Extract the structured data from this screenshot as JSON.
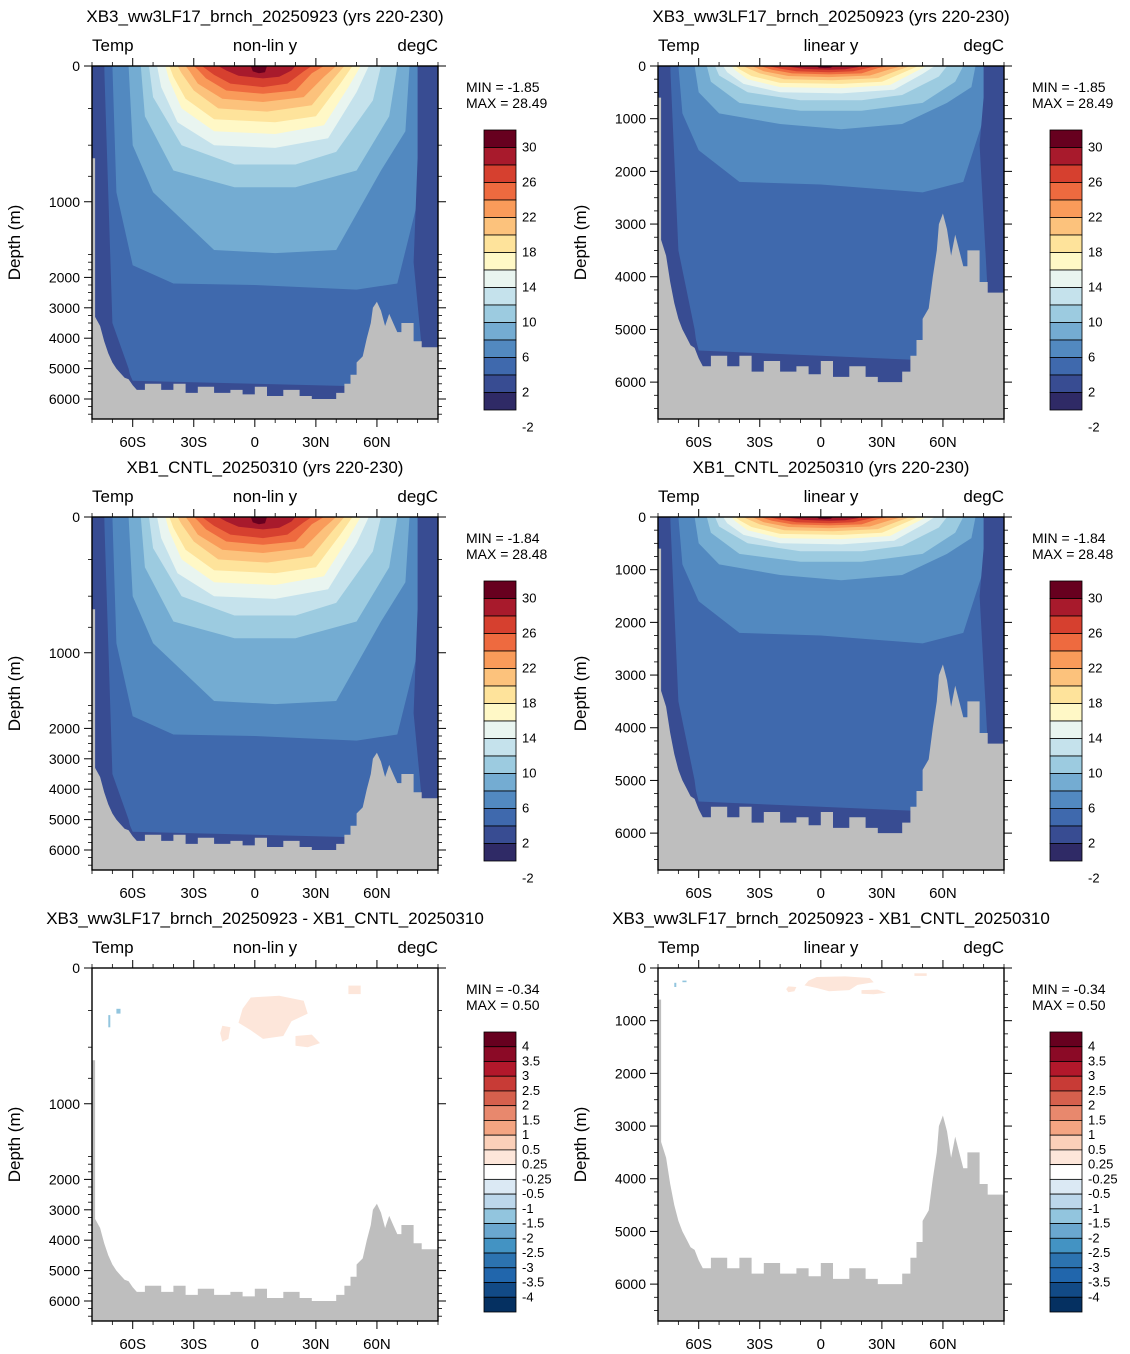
{
  "figure": {
    "panels": [
      {
        "title": "XB3_ww3LF17_brnch_20250923 (yrs 220-230)",
        "left_label": "Temp",
        "center_label": "non-lin y",
        "right_label": "degC",
        "min_text": "MIN = -1.85",
        "max_text": "MAX = 28.49",
        "ylabel": "Depth (m)",
        "yscale": "non-linear",
        "ytick_labels": [
          "0",
          "1000",
          "2000",
          "3000",
          "4000",
          "5000",
          "6000"
        ],
        "xtick_labels": [
          "60S",
          "30S",
          "0",
          "30N",
          "60N"
        ],
        "colorbar_labels": [
          "30",
          "26",
          "22",
          "18",
          "14",
          "10",
          "6",
          "2",
          "-2"
        ],
        "colorbar": "temp"
      },
      {
        "title": "XB3_ww3LF17_brnch_20250923 (yrs 220-230)",
        "left_label": "Temp",
        "center_label": "linear y",
        "right_label": "degC",
        "min_text": "MIN = -1.85",
        "max_text": "MAX = 28.49",
        "ylabel": "Depth (m)",
        "yscale": "linear",
        "ytick_labels": [
          "0",
          "1000",
          "2000",
          "3000",
          "4000",
          "5000",
          "6000"
        ],
        "xtick_labels": [
          "60S",
          "30S",
          "0",
          "30N",
          "60N"
        ],
        "colorbar_labels": [
          "30",
          "26",
          "22",
          "18",
          "14",
          "10",
          "6",
          "2",
          "-2"
        ],
        "colorbar": "temp"
      },
      {
        "title": "XB1_CNTL_20250310 (yrs 220-230)",
        "left_label": "Temp",
        "center_label": "non-lin y",
        "right_label": "degC",
        "min_text": "MIN = -1.84",
        "max_text": "MAX = 28.48",
        "ylabel": "Depth (m)",
        "yscale": "non-linear",
        "ytick_labels": [
          "0",
          "1000",
          "2000",
          "3000",
          "4000",
          "5000",
          "6000"
        ],
        "xtick_labels": [
          "60S",
          "30S",
          "0",
          "30N",
          "60N"
        ],
        "colorbar_labels": [
          "30",
          "26",
          "22",
          "18",
          "14",
          "10",
          "6",
          "2",
          "-2"
        ],
        "colorbar": "temp"
      },
      {
        "title": "XB1_CNTL_20250310 (yrs 220-230)",
        "left_label": "Temp",
        "center_label": "linear y",
        "right_label": "degC",
        "min_text": "MIN = -1.84",
        "max_text": "MAX = 28.48",
        "ylabel": "Depth (m)",
        "yscale": "linear",
        "ytick_labels": [
          "0",
          "1000",
          "2000",
          "3000",
          "4000",
          "5000",
          "6000"
        ],
        "xtick_labels": [
          "60S",
          "30S",
          "0",
          "30N",
          "60N"
        ],
        "colorbar_labels": [
          "30",
          "26",
          "22",
          "18",
          "14",
          "10",
          "6",
          "2",
          "-2"
        ],
        "colorbar": "temp"
      },
      {
        "title": "XB3_ww3LF17_brnch_20250923 - XB1_CNTL_20250310",
        "left_label": "Temp",
        "center_label": "non-lin y",
        "right_label": "degC",
        "min_text": "MIN = -0.34",
        "max_text": "MAX = 0.50",
        "ylabel": "Depth (m)",
        "yscale": "non-linear",
        "ytick_labels": [
          "0",
          "1000",
          "2000",
          "3000",
          "4000",
          "5000",
          "6000"
        ],
        "xtick_labels": [
          "60S",
          "30S",
          "0",
          "30N",
          "60N"
        ],
        "colorbar_labels": [
          "4",
          "3.5",
          "3",
          "2.5",
          "2",
          "1.5",
          "1",
          "0.5",
          "0.25",
          "-0.25",
          "-0.5",
          "-1",
          "-1.5",
          "-2",
          "-2.5",
          "-3",
          "-3.5",
          "-4"
        ],
        "colorbar": "diff"
      },
      {
        "title": "XB3_ww3LF17_brnch_20250923 - XB1_CNTL_20250310",
        "left_label": "Temp",
        "center_label": "linear y",
        "right_label": "degC",
        "min_text": "MIN = -0.34",
        "max_text": "MAX = 0.50",
        "ylabel": "Depth (m)",
        "yscale": "linear",
        "ytick_labels": [
          "0",
          "1000",
          "2000",
          "3000",
          "4000",
          "5000",
          "6000"
        ],
        "xtick_labels": [
          "60S",
          "30S",
          "0",
          "30N",
          "60N"
        ],
        "colorbar_labels": [
          "4",
          "3.5",
          "3",
          "2.5",
          "2",
          "1.5",
          "1",
          "0.5",
          "0.25",
          "-0.25",
          "-0.5",
          "-1",
          "-1.5",
          "-2",
          "-2.5",
          "-3",
          "-3.5",
          "-4"
        ],
        "colorbar": "diff"
      }
    ],
    "temp_colors": [
      "#67001f",
      "#a81a2c",
      "#d6402f",
      "#ee6a3f",
      "#f99b5a",
      "#fcc27c",
      "#fee39b",
      "#fff8c6",
      "#e9f5f0",
      "#c5e2ec",
      "#9ccbe0",
      "#74acd2",
      "#5289c0",
      "#3f69ad",
      "#384c92",
      "#2f2a66"
    ],
    "diff_colors": [
      "#67001f",
      "#8b0a26",
      "#b2182b",
      "#c83b36",
      "#d6604d",
      "#e8886d",
      "#f4a582",
      "#fbd0b9",
      "#fde6da",
      "#ffffff",
      "#dbe9f4",
      "#bcd7eb",
      "#92c5de",
      "#6aa7cf",
      "#4393c3",
      "#2c73b0",
      "#2166ac",
      "#124a86",
      "#053061"
    ],
    "land_color": "#bebebe",
    "chart_data": [
      {
        "type": "heatmap",
        "title": "XB3_ww3LF17_brnch_20250923 (yrs 220-230)",
        "variable": "Temp",
        "units": "degC",
        "ylabel": "Depth (m)",
        "yscale": "non-linear",
        "ylim": [
          0,
          6000
        ],
        "x": [
          "60S",
          "30S",
          "0",
          "30N",
          "60N"
        ],
        "min": -1.85,
        "max": 28.49,
        "contour_levels": [
          -2,
          0,
          2,
          4,
          6,
          8,
          10,
          12,
          14,
          16,
          18,
          20,
          22,
          24,
          26,
          28,
          30
        ]
      },
      {
        "type": "heatmap",
        "title": "XB3_ww3LF17_brnch_20250923 (yrs 220-230)",
        "variable": "Temp",
        "units": "degC",
        "ylabel": "Depth (m)",
        "yscale": "linear",
        "ylim": [
          0,
          6000
        ],
        "x": [
          "60S",
          "30S",
          "0",
          "30N",
          "60N"
        ],
        "min": -1.85,
        "max": 28.49,
        "contour_levels": [
          -2,
          0,
          2,
          4,
          6,
          8,
          10,
          12,
          14,
          16,
          18,
          20,
          22,
          24,
          26,
          28,
          30
        ]
      },
      {
        "type": "heatmap",
        "title": "XB1_CNTL_20250310 (yrs 220-230)",
        "variable": "Temp",
        "units": "degC",
        "ylabel": "Depth (m)",
        "yscale": "non-linear",
        "ylim": [
          0,
          6000
        ],
        "x": [
          "60S",
          "30S",
          "0",
          "30N",
          "60N"
        ],
        "min": -1.84,
        "max": 28.48,
        "contour_levels": [
          -2,
          0,
          2,
          4,
          6,
          8,
          10,
          12,
          14,
          16,
          18,
          20,
          22,
          24,
          26,
          28,
          30
        ]
      },
      {
        "type": "heatmap",
        "title": "XB1_CNTL_20250310 (yrs 220-230)",
        "variable": "Temp",
        "units": "degC",
        "ylabel": "Depth (m)",
        "yscale": "linear",
        "ylim": [
          0,
          6000
        ],
        "x": [
          "60S",
          "30S",
          "0",
          "30N",
          "60N"
        ],
        "min": -1.84,
        "max": 28.48,
        "contour_levels": [
          -2,
          0,
          2,
          4,
          6,
          8,
          10,
          12,
          14,
          16,
          18,
          20,
          22,
          24,
          26,
          28,
          30
        ]
      },
      {
        "type": "heatmap",
        "title": "XB3_ww3LF17_brnch_20250923 - XB1_CNTL_20250310",
        "variable": "Temp",
        "units": "degC",
        "ylabel": "Depth (m)",
        "yscale": "non-linear",
        "ylim": [
          0,
          6000
        ],
        "x": [
          "60S",
          "30S",
          "0",
          "30N",
          "60N"
        ],
        "min": -0.34,
        "max": 0.5,
        "contour_levels": [
          -4,
          -3.5,
          -3,
          -2.5,
          -2,
          -1.5,
          -1,
          -0.5,
          -0.25,
          0.25,
          0.5,
          1,
          1.5,
          2,
          2.5,
          3,
          3.5,
          4
        ]
      },
      {
        "type": "heatmap",
        "title": "XB3_ww3LF17_brnch_20250923 - XB1_CNTL_20250310",
        "variable": "Temp",
        "units": "degC",
        "ylabel": "Depth (m)",
        "yscale": "linear",
        "ylim": [
          0,
          6000
        ],
        "x": [
          "60S",
          "30S",
          "0",
          "30N",
          "60N"
        ],
        "min": -0.34,
        "max": 0.5,
        "contour_levels": [
          -4,
          -3.5,
          -3,
          -2.5,
          -2,
          -1.5,
          -1,
          -0.5,
          -0.25,
          0.25,
          0.5,
          1,
          1.5,
          2,
          2.5,
          3,
          3.5,
          4
        ]
      }
    ]
  }
}
